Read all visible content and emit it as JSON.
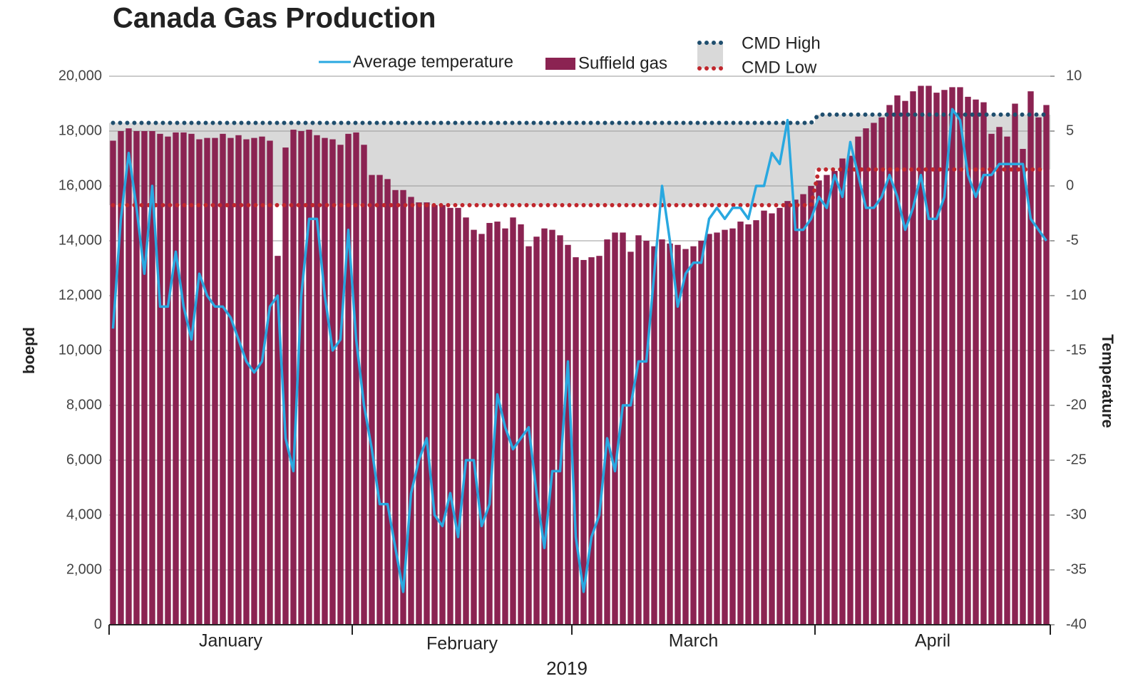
{
  "chart_data": {
    "type": "bar_line_band",
    "title": "Canada Gas Production",
    "ylabel": "boepd",
    "y2label": "Temperature",
    "xlabel": "2019",
    "month_labels": [
      "January",
      "February",
      "March",
      "April"
    ],
    "xticks": [
      0,
      31,
      59,
      90,
      120
    ],
    "xlim": [
      0,
      120
    ],
    "ylim": [
      0,
      20000
    ],
    "yticks": [
      0,
      {
        "value": 2000,
        "label": "2,000"
      },
      {
        "value": 4000,
        "label": "4,000"
      },
      {
        "value": 6000,
        "label": "6,000"
      },
      {
        "value": 8000,
        "label": "8,000"
      },
      {
        "value": 10000,
        "label": "10,000"
      },
      {
        "value": 12000,
        "label": "12,000"
      },
      {
        "value": 14000,
        "label": "14,000"
      },
      {
        "value": 16000,
        "label": "16,000"
      },
      {
        "value": 18000,
        "label": "18,000"
      },
      {
        "value": 20000,
        "label": "20,000"
      }
    ],
    "y2lim": [
      -40,
      10
    ],
    "y2ticks": [
      -40,
      -35,
      -30,
      -25,
      -20,
      -15,
      -10,
      -5,
      0,
      5,
      10
    ],
    "categories": [
      null,
      null,
      null,
      null,
      null,
      null,
      null,
      null,
      null,
      null,
      null,
      null,
      null,
      null,
      null,
      null,
      null,
      null,
      null,
      null,
      null,
      null,
      null,
      null,
      null,
      null,
      null,
      null,
      null,
      null,
      null,
      null,
      null,
      null,
      null,
      null,
      null,
      null,
      null,
      null,
      null,
      null,
      null,
      null,
      null,
      null,
      null,
      null,
      null,
      null,
      null,
      null,
      null,
      null,
      null,
      null,
      null,
      null,
      null,
      null,
      null,
      null,
      null,
      null,
      null,
      null,
      null,
      null,
      null,
      null,
      null,
      null,
      null,
      null,
      null,
      null,
      null,
      null,
      null,
      null,
      null,
      null,
      null,
      null,
      null,
      null,
      null,
      null,
      null,
      null,
      null,
      null,
      null,
      null,
      null,
      null,
      null,
      null,
      null,
      null,
      null,
      null,
      null,
      null,
      null,
      null,
      null,
      null,
      null,
      null,
      null,
      null,
      null,
      null,
      null,
      null,
      null,
      null,
      null,
      null
    ],
    "series": [
      {
        "name": "Suffield gas",
        "kind": "bar",
        "color": "#8b2352",
        "values": [
          17650,
          18000,
          18100,
          18000,
          18000,
          18000,
          17900,
          17800,
          17950,
          17950,
          17900,
          17700,
          17750,
          17750,
          17900,
          17750,
          17850,
          17700,
          17750,
          17800,
          17650,
          13450,
          17400,
          18050,
          18000,
          18050,
          17850,
          17750,
          17700,
          17500,
          17900,
          17950,
          17500,
          16400,
          16400,
          16250,
          15850,
          15850,
          15600,
          15400,
          15400,
          15300,
          15300,
          15200,
          15200,
          14850,
          14400,
          14250,
          14650,
          14700,
          14450,
          14850,
          14600,
          13800,
          14150,
          14450,
          14400,
          14200,
          13850,
          13400,
          13300,
          13400,
          13450,
          14050,
          14300,
          14300,
          13600,
          14200,
          14000,
          13800,
          14050,
          13900,
          13850,
          13700,
          13800,
          14000,
          14250,
          14300,
          14400,
          14450,
          14700,
          14600,
          14750,
          15100,
          15000,
          15200,
          15450,
          15500,
          15700,
          16000,
          16200,
          16400,
          16550,
          17000,
          17100,
          17800,
          18100,
          18300,
          18500,
          18950,
          19300,
          19100,
          19450,
          19650,
          19650,
          19400,
          19500,
          19600,
          19600,
          19250,
          19150,
          19050,
          17900,
          18150,
          17800,
          19000,
          17350,
          19450,
          18500,
          18950
        ]
      },
      {
        "name": "Average temperature",
        "kind": "line",
        "axis": "y2",
        "color": "#29a8e0",
        "values": [
          -13,
          -3,
          3,
          -2,
          -8,
          0,
          -11,
          -11,
          -6,
          -11,
          -14,
          -8,
          -10,
          -11,
          -11,
          -12,
          -14,
          -16,
          -17,
          -16,
          -11,
          -10,
          -23,
          -26,
          -10,
          -3,
          -3,
          -10,
          -15,
          -14,
          -4,
          -14,
          -20,
          -24,
          -29,
          -29,
          -33,
          -37,
          -28,
          -25,
          -23,
          -30,
          -31,
          -28,
          -32,
          -25,
          -25,
          -31,
          -29,
          -19,
          -22,
          -24,
          -23,
          -22,
          -28,
          -33,
          -26,
          -26,
          -16,
          -32,
          -37,
          -32,
          -30,
          -23,
          -26,
          -20,
          -20,
          -16,
          -16,
          -8,
          0,
          -5,
          -11,
          -8,
          -7,
          -7,
          -3,
          -2,
          -3,
          -2,
          -2,
          -3,
          0,
          0,
          3,
          2,
          6,
          -4,
          -4,
          -3,
          -1,
          -2,
          1,
          -1,
          4,
          1,
          -2,
          -2,
          -1,
          1,
          -1,
          -4,
          -2,
          1,
          -3,
          -3,
          -1,
          7,
          6,
          1,
          -1,
          1,
          1,
          2,
          2,
          2,
          2,
          -3,
          -4,
          -5
        ]
      },
      {
        "name": "CMD High",
        "kind": "dotted",
        "color": "#1f4e6e",
        "values": [
          18300,
          18300,
          18300,
          18300,
          18300,
          18300,
          18300,
          18300,
          18300,
          18300,
          18300,
          18300,
          18300,
          18300,
          18300,
          18300,
          18300,
          18300,
          18300,
          18300,
          18300,
          18300,
          18300,
          18300,
          18300,
          18300,
          18300,
          18300,
          18300,
          18300,
          18300,
          18300,
          18300,
          18300,
          18300,
          18300,
          18300,
          18300,
          18300,
          18300,
          18300,
          18300,
          18300,
          18300,
          18300,
          18300,
          18300,
          18300,
          18300,
          18300,
          18300,
          18300,
          18300,
          18300,
          18300,
          18300,
          18300,
          18300,
          18300,
          18300,
          18300,
          18300,
          18300,
          18300,
          18300,
          18300,
          18300,
          18300,
          18300,
          18300,
          18300,
          18300,
          18300,
          18300,
          18300,
          18300,
          18300,
          18300,
          18300,
          18300,
          18300,
          18300,
          18300,
          18300,
          18300,
          18300,
          18300,
          18300,
          18300,
          18300,
          18600,
          18600,
          18600,
          18600,
          18600,
          18600,
          18600,
          18600,
          18600,
          18600,
          18600,
          18600,
          18600,
          18600,
          18600,
          18600,
          18600,
          18600,
          18600,
          18600,
          18600,
          18600,
          18600,
          18600,
          18600,
          18600,
          18600,
          18600,
          18600,
          18600
        ]
      },
      {
        "name": "CMD Low",
        "kind": "dotted",
        "color": "#c0272d",
        "values": [
          15300,
          15300,
          15300,
          15300,
          15300,
          15300,
          15300,
          15300,
          15300,
          15300,
          15300,
          15300,
          15300,
          15300,
          15300,
          15300,
          15300,
          15300,
          15300,
          15300,
          15300,
          15300,
          15300,
          15300,
          15300,
          15300,
          15300,
          15300,
          15300,
          15300,
          15300,
          15300,
          15300,
          15300,
          15300,
          15300,
          15300,
          15300,
          15300,
          15300,
          15300,
          15300,
          15300,
          15300,
          15300,
          15300,
          15300,
          15300,
          15300,
          15300,
          15300,
          15300,
          15300,
          15300,
          15300,
          15300,
          15300,
          15300,
          15300,
          15300,
          15300,
          15300,
          15300,
          15300,
          15300,
          15300,
          15300,
          15300,
          15300,
          15300,
          15300,
          15300,
          15300,
          15300,
          15300,
          15300,
          15300,
          15300,
          15300,
          15300,
          15300,
          15300,
          15300,
          15300,
          15300,
          15300,
          15300,
          15300,
          15300,
          15300,
          16600,
          16600,
          16600,
          16600,
          16600,
          16600,
          16600,
          16600,
          16600,
          16600,
          16600,
          16600,
          16600,
          16600,
          16600,
          16600,
          16600,
          16600,
          16600,
          16600,
          16600,
          16600,
          16600,
          16600,
          16600,
          16600,
          16600,
          16600,
          16600,
          16600
        ]
      }
    ],
    "band_color": "#d9d9d9",
    "title_color": "#0d5677",
    "y2_color": "#29a8e0"
  }
}
